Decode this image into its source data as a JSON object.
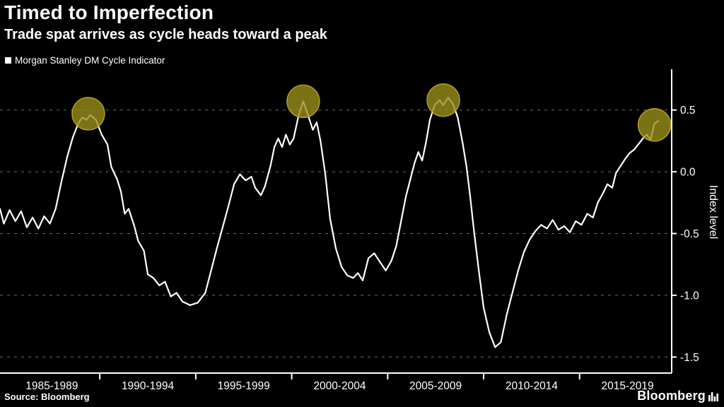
{
  "footer": {
    "source": "Source: Bloomberg",
    "brand": "Bloomberg"
  },
  "colors": {
    "background": "#000000",
    "line": "#ffffff",
    "grid": "#6e6e6e",
    "axis": "#ffffff",
    "text": "#ffffff",
    "highlight_fill": "#9a8d1a",
    "highlight_stroke": "#b8a820"
  },
  "chart_data": {
    "type": "line",
    "title": "Timed to Imperfection",
    "subtitle": "Trade spat arrives as cycle heads toward a peak",
    "ylabel": "Index level",
    "grid": "dashed-horizontal",
    "legend_position": "top-left",
    "x_range": [
      1984.8,
      2019.8
    ],
    "y_range": [
      -1.63,
      0.83
    ],
    "y_ticks": [
      0.5,
      0.0,
      -0.5,
      -1.0,
      -1.5
    ],
    "y_tick_labels": [
      "0.5",
      "0.0",
      "-0.5",
      "-1.0",
      "-1.5"
    ],
    "x_tick_labels": [
      "1985-1989",
      "1990-1994",
      "1995-1999",
      "2000-2004",
      "2005-2009",
      "2010-2014",
      "2015-2019"
    ],
    "x_label_centers": [
      1987.5,
      1992.5,
      1997.5,
      2002.5,
      2007.5,
      2012.5,
      2017.5
    ],
    "x_boundary_years": [
      1990,
      1995,
      2000,
      2005,
      2010,
      2015
    ],
    "highlights": [
      {
        "x": 1989.4,
        "y": 0.47
      },
      {
        "x": 2000.6,
        "y": 0.57
      },
      {
        "x": 2007.9,
        "y": 0.58
      },
      {
        "x": 2018.9,
        "y": 0.38
      }
    ],
    "highlight_radius": 23,
    "series": [
      {
        "name": "Morgan Stanley DM Cycle Indicator",
        "points": [
          [
            1984.8,
            -0.3
          ],
          [
            1985.0,
            -0.42
          ],
          [
            1985.3,
            -0.31
          ],
          [
            1985.6,
            -0.4
          ],
          [
            1985.9,
            -0.32
          ],
          [
            1986.2,
            -0.45
          ],
          [
            1986.5,
            -0.37
          ],
          [
            1986.8,
            -0.46
          ],
          [
            1987.1,
            -0.36
          ],
          [
            1987.4,
            -0.42
          ],
          [
            1987.7,
            -0.3
          ],
          [
            1988.0,
            -0.08
          ],
          [
            1988.3,
            0.12
          ],
          [
            1988.6,
            0.28
          ],
          [
            1988.9,
            0.4
          ],
          [
            1989.1,
            0.44
          ],
          [
            1989.3,
            0.42
          ],
          [
            1989.5,
            0.46
          ],
          [
            1989.8,
            0.42
          ],
          [
            1990.1,
            0.3
          ],
          [
            1990.4,
            0.22
          ],
          [
            1990.6,
            0.04
          ],
          [
            1990.9,
            -0.06
          ],
          [
            1991.1,
            -0.16
          ],
          [
            1991.3,
            -0.34
          ],
          [
            1991.5,
            -0.3
          ],
          [
            1991.8,
            -0.44
          ],
          [
            1992.0,
            -0.56
          ],
          [
            1992.3,
            -0.64
          ],
          [
            1992.5,
            -0.83
          ],
          [
            1992.8,
            -0.86
          ],
          [
            1993.1,
            -0.92
          ],
          [
            1993.4,
            -0.89
          ],
          [
            1993.7,
            -1.01
          ],
          [
            1994.0,
            -0.98
          ],
          [
            1994.3,
            -1.05
          ],
          [
            1994.7,
            -1.08
          ],
          [
            1995.1,
            -1.06
          ],
          [
            1995.5,
            -0.98
          ],
          [
            1995.8,
            -0.8
          ],
          [
            1996.1,
            -0.62
          ],
          [
            1996.4,
            -0.45
          ],
          [
            1996.7,
            -0.28
          ],
          [
            1997.0,
            -0.1
          ],
          [
            1997.3,
            -0.02
          ],
          [
            1997.6,
            -0.07
          ],
          [
            1997.9,
            -0.04
          ],
          [
            1998.1,
            -0.13
          ],
          [
            1998.4,
            -0.19
          ],
          [
            1998.6,
            -0.12
          ],
          [
            1998.9,
            0.05
          ],
          [
            1999.1,
            0.2
          ],
          [
            1999.3,
            0.27
          ],
          [
            1999.5,
            0.2
          ],
          [
            1999.7,
            0.3
          ],
          [
            1999.9,
            0.22
          ],
          [
            2000.1,
            0.27
          ],
          [
            2000.35,
            0.45
          ],
          [
            2000.6,
            0.57
          ],
          [
            2000.85,
            0.46
          ],
          [
            2001.1,
            0.34
          ],
          [
            2001.3,
            0.4
          ],
          [
            2001.5,
            0.25
          ],
          [
            2001.75,
            -0.02
          ],
          [
            2002.0,
            -0.38
          ],
          [
            2002.3,
            -0.62
          ],
          [
            2002.6,
            -0.77
          ],
          [
            2002.9,
            -0.84
          ],
          [
            2003.2,
            -0.86
          ],
          [
            2003.45,
            -0.82
          ],
          [
            2003.7,
            -0.88
          ],
          [
            2004.0,
            -0.7
          ],
          [
            2004.3,
            -0.66
          ],
          [
            2004.6,
            -0.73
          ],
          [
            2004.9,
            -0.8
          ],
          [
            2005.2,
            -0.72
          ],
          [
            2005.45,
            -0.6
          ],
          [
            2005.7,
            -0.4
          ],
          [
            2005.95,
            -0.2
          ],
          [
            2006.2,
            -0.05
          ],
          [
            2006.4,
            0.07
          ],
          [
            2006.6,
            0.16
          ],
          [
            2006.8,
            0.09
          ],
          [
            2007.0,
            0.24
          ],
          [
            2007.2,
            0.42
          ],
          [
            2007.45,
            0.54
          ],
          [
            2007.7,
            0.58
          ],
          [
            2007.9,
            0.54
          ],
          [
            2008.15,
            0.6
          ],
          [
            2008.4,
            0.55
          ],
          [
            2008.65,
            0.44
          ],
          [
            2008.9,
            0.24
          ],
          [
            2009.1,
            0.05
          ],
          [
            2009.3,
            -0.2
          ],
          [
            2009.5,
            -0.48
          ],
          [
            2009.75,
            -0.8
          ],
          [
            2010.0,
            -1.1
          ],
          [
            2010.3,
            -1.3
          ],
          [
            2010.6,
            -1.42
          ],
          [
            2010.9,
            -1.38
          ],
          [
            2011.2,
            -1.16
          ],
          [
            2011.5,
            -0.98
          ],
          [
            2011.8,
            -0.8
          ],
          [
            2012.1,
            -0.65
          ],
          [
            2012.4,
            -0.55
          ],
          [
            2012.7,
            -0.48
          ],
          [
            2013.0,
            -0.43
          ],
          [
            2013.3,
            -0.46
          ],
          [
            2013.6,
            -0.39
          ],
          [
            2013.9,
            -0.47
          ],
          [
            2014.2,
            -0.44
          ],
          [
            2014.5,
            -0.49
          ],
          [
            2014.8,
            -0.4
          ],
          [
            2015.1,
            -0.43
          ],
          [
            2015.4,
            -0.34
          ],
          [
            2015.7,
            -0.37
          ],
          [
            2015.95,
            -0.25
          ],
          [
            2016.2,
            -0.18
          ],
          [
            2016.45,
            -0.1
          ],
          [
            2016.7,
            -0.13
          ],
          [
            2016.9,
            -0.01
          ],
          [
            2017.15,
            0.05
          ],
          [
            2017.4,
            0.11
          ],
          [
            2017.6,
            0.15
          ],
          [
            2017.85,
            0.18
          ],
          [
            2018.1,
            0.23
          ],
          [
            2018.3,
            0.27
          ],
          [
            2018.5,
            0.3
          ],
          [
            2018.7,
            0.26
          ],
          [
            2018.9,
            0.39
          ],
          [
            2019.1,
            0.41
          ]
        ]
      }
    ]
  }
}
